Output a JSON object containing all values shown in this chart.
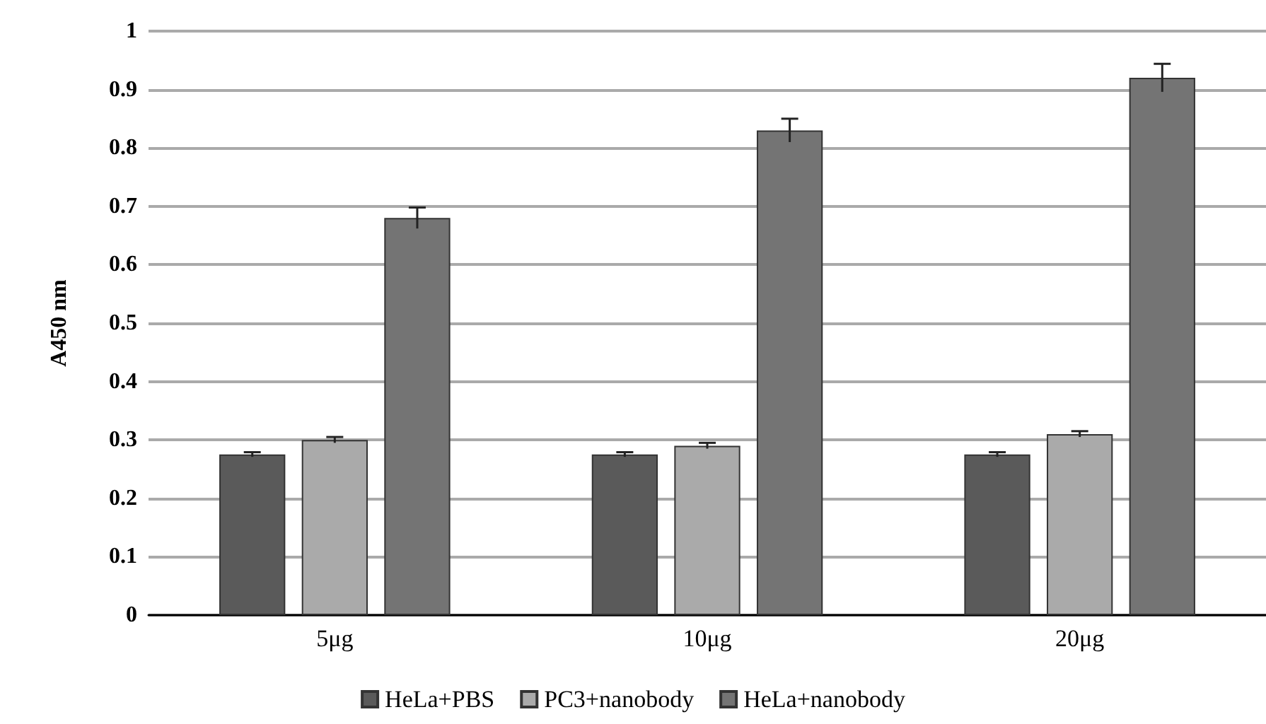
{
  "chart_data": {
    "type": "bar",
    "ylabel": "A450 nm",
    "categories": [
      "5μg",
      "10μg",
      "20μg"
    ],
    "series": [
      {
        "name": "HeLa+PBS",
        "color": "#5a5a5a",
        "values": [
          0.275,
          0.275,
          0.275
        ],
        "errors": [
          0.004,
          0.004,
          0.004
        ]
      },
      {
        "name": "PC3+nanobody",
        "color": "#aaaaaa",
        "values": [
          0.3,
          0.29,
          0.31
        ],
        "errors": [
          0.005,
          0.005,
          0.005
        ]
      },
      {
        "name": "HeLa+nanobody",
        "color": "#747474",
        "values": [
          0.68,
          0.83,
          0.92
        ],
        "errors": [
          0.018,
          0.02,
          0.024
        ]
      }
    ],
    "ylim": [
      0,
      1
    ],
    "yticks": [
      0,
      0.1,
      0.2,
      0.3,
      0.4,
      0.5,
      0.6,
      0.7,
      0.8,
      0.9,
      1
    ],
    "grid": "y",
    "legend": "bottom"
  }
}
